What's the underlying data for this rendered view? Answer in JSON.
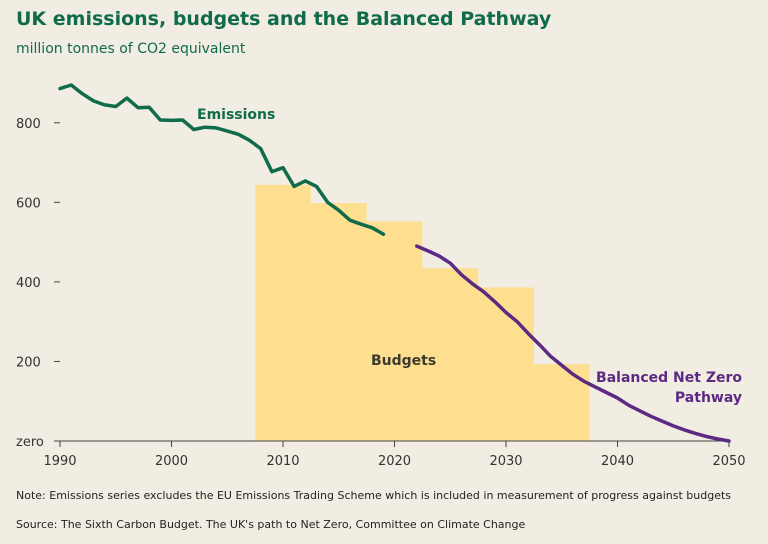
{
  "title": "UK emissions, budgets and the Balanced Pathway",
  "subtitle": "million tonnes of CO2 equivalent",
  "note": "Note: Emissions series excludes the EU Emissions Trading Scheme which is included in measurement of progress against budgets",
  "source": "Source: The Sixth Carbon Budget. The UK's path to Net Zero, Committee on Climate Change",
  "colors": {
    "emissions": "#0f6b4a",
    "pathway": "#5c2a83",
    "budgets": "#fddf8f",
    "text": "#3c3a30",
    "background": "#f1ede2"
  },
  "chart_data": {
    "type": "line",
    "xlim": [
      1990,
      2050
    ],
    "ylim": [
      0,
      900
    ],
    "x_ticks": [
      1990,
      2000,
      2010,
      2020,
      2030,
      2040,
      2050
    ],
    "y_ticks": [
      {
        "value": 0,
        "label": "zero"
      },
      {
        "value": 200,
        "label": "200"
      },
      {
        "value": 400,
        "label": "400"
      },
      {
        "value": 600,
        "label": "600"
      },
      {
        "value": 800,
        "label": "800"
      }
    ],
    "grid": false,
    "annotations": {
      "emissions": "Emissions",
      "budgets": "Budgets",
      "pathway_line1": "Balanced Net Zero",
      "pathway_line2": "Pathway"
    },
    "budgets": [
      {
        "start": 2008,
        "end": 2012,
        "value": 644
      },
      {
        "start": 2013,
        "end": 2017,
        "value": 598
      },
      {
        "start": 2018,
        "end": 2022,
        "value": 552
      },
      {
        "start": 2023,
        "end": 2027,
        "value": 434
      },
      {
        "start": 2028,
        "end": 2032,
        "value": 386
      },
      {
        "start": 2033,
        "end": 2037,
        "value": 193
      }
    ],
    "series": [
      {
        "name": "Emissions",
        "points": [
          [
            1990,
            886
          ],
          [
            1991,
            895
          ],
          [
            1992,
            873
          ],
          [
            1993,
            855
          ],
          [
            1994,
            845
          ],
          [
            1995,
            841
          ],
          [
            1996,
            862
          ],
          [
            1997,
            838
          ],
          [
            1998,
            839
          ],
          [
            1999,
            807
          ],
          [
            2000,
            806
          ],
          [
            2001,
            807
          ],
          [
            2002,
            783
          ],
          [
            2003,
            789
          ],
          [
            2004,
            787
          ],
          [
            2005,
            779
          ],
          [
            2006,
            771
          ],
          [
            2007,
            756
          ],
          [
            2008,
            735
          ],
          [
            2009,
            677
          ],
          [
            2010,
            687
          ],
          [
            2011,
            640
          ],
          [
            2012,
            654
          ],
          [
            2013,
            640
          ],
          [
            2014,
            600
          ],
          [
            2015,
            580
          ],
          [
            2016,
            555
          ],
          [
            2017,
            545
          ],
          [
            2018,
            536
          ],
          [
            2019,
            520
          ]
        ]
      },
      {
        "name": "Balanced Net Zero Pathway",
        "points": [
          [
            2022,
            490
          ],
          [
            2023,
            478
          ],
          [
            2024,
            465
          ],
          [
            2025,
            447
          ],
          [
            2026,
            418
          ],
          [
            2027,
            395
          ],
          [
            2028,
            375
          ],
          [
            2029,
            350
          ],
          [
            2030,
            323
          ],
          [
            2031,
            300
          ],
          [
            2032,
            270
          ],
          [
            2033,
            242
          ],
          [
            2034,
            213
          ],
          [
            2035,
            190
          ],
          [
            2036,
            168
          ],
          [
            2037,
            150
          ],
          [
            2038,
            136
          ],
          [
            2039,
            122
          ],
          [
            2040,
            108
          ],
          [
            2041,
            90
          ],
          [
            2042,
            76
          ],
          [
            2043,
            62
          ],
          [
            2044,
            50
          ],
          [
            2045,
            38
          ],
          [
            2046,
            28
          ],
          [
            2047,
            19
          ],
          [
            2048,
            11
          ],
          [
            2049,
            5
          ],
          [
            2050,
            0
          ]
        ]
      }
    ]
  }
}
